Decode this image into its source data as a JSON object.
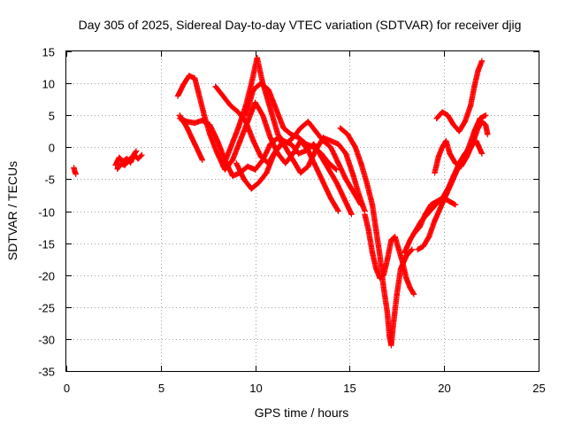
{
  "chart_data": {
    "type": "scatter",
    "title": "Day 305 of 2025, Sidereal Day-to-day VTEC variation (SDTVAR) for receiver djig",
    "xlabel": "GPS time / hours",
    "ylabel": "SDTVAR / TECUs",
    "xlim": [
      0,
      25
    ],
    "ylim": [
      -35,
      15
    ],
    "x_ticks": [
      0,
      5,
      10,
      15,
      20,
      25
    ],
    "y_ticks": [
      15,
      10,
      5,
      0,
      -5,
      -10,
      -15,
      -20,
      -25,
      -30,
      -35
    ],
    "grid": true,
    "marker": "+",
    "color": "#ff0000",
    "tracks": [
      [
        [
          0.4,
          -3.2
        ],
        [
          0.45,
          -3.8
        ],
        [
          0.5,
          -4.2
        ]
      ],
      [
        [
          2.6,
          -2.8
        ],
        [
          2.8,
          -1.6
        ],
        [
          3.0,
          -2.2
        ],
        [
          3.2,
          -1.8
        ],
        [
          3.4,
          -2.4
        ],
        [
          3.6,
          -1.2
        ],
        [
          3.8,
          -1.8
        ],
        [
          4.0,
          -1.2
        ]
      ],
      [
        [
          2.7,
          -3.4
        ],
        [
          2.9,
          -2.6
        ],
        [
          3.1,
          -2.8
        ],
        [
          3.3,
          -2.0
        ],
        [
          3.5,
          -1.5
        ],
        [
          3.7,
          -0.6
        ]
      ],
      [
        [
          5.9,
          8.0
        ],
        [
          6.2,
          9.8
        ],
        [
          6.5,
          11.2
        ],
        [
          6.8,
          10.8
        ],
        [
          7.0,
          8.5
        ],
        [
          7.3,
          5.0
        ],
        [
          7.6,
          2.0
        ],
        [
          8.0,
          -1.0
        ],
        [
          8.4,
          -3.5
        ],
        [
          8.8,
          -2.0
        ],
        [
          9.2,
          1.0
        ],
        [
          9.6,
          4.0
        ],
        [
          10.0,
          7.0
        ],
        [
          10.4,
          5.0
        ],
        [
          10.8,
          1.5
        ],
        [
          11.2,
          -1.0
        ],
        [
          11.6,
          -2.5
        ],
        [
          12.0,
          -1.0
        ],
        [
          12.4,
          1.0
        ],
        [
          12.8,
          -0.5
        ],
        [
          13.2,
          -3.0
        ],
        [
          13.6,
          -5.5
        ],
        [
          14.0,
          -8.0
        ],
        [
          14.4,
          -10.0
        ]
      ],
      [
        [
          6.0,
          5.0
        ],
        [
          6.4,
          3.0
        ],
        [
          6.8,
          0.5
        ],
        [
          7.2,
          -2.0
        ]
      ],
      [
        [
          6.0,
          4.5
        ],
        [
          6.4,
          4.0
        ],
        [
          6.8,
          3.8
        ],
        [
          7.2,
          4.2
        ],
        [
          7.6,
          3.5
        ],
        [
          8.0,
          1.0
        ],
        [
          8.4,
          -2.0
        ],
        [
          8.8,
          -4.5
        ],
        [
          9.2,
          -4.0
        ],
        [
          9.6,
          -3.0
        ],
        [
          10.0,
          -3.5
        ],
        [
          10.4,
          -2.0
        ],
        [
          10.8,
          0.5
        ],
        [
          11.2,
          1.5
        ],
        [
          11.6,
          0.0
        ],
        [
          12.0,
          -2.0
        ],
        [
          12.4,
          -4.0
        ],
        [
          12.8,
          -3.0
        ],
        [
          13.2,
          -0.5
        ],
        [
          13.6,
          1.5
        ],
        [
          14.0,
          1.0
        ],
        [
          14.4,
          0.5
        ],
        [
          14.8,
          -1.0
        ],
        [
          15.2,
          -4.5
        ],
        [
          15.5,
          -7.5
        ],
        [
          15.8,
          -10.0
        ]
      ],
      [
        [
          7.9,
          9.5
        ],
        [
          8.3,
          8.0
        ],
        [
          8.7,
          6.5
        ],
        [
          9.1,
          5.5
        ],
        [
          9.5,
          4.0
        ],
        [
          9.9,
          1.0
        ],
        [
          10.3,
          -1.5
        ],
        [
          10.7,
          -2.5
        ],
        [
          11.1,
          -0.5
        ],
        [
          11.5,
          1.0
        ],
        [
          11.9,
          0.5
        ],
        [
          12.3,
          -1.0
        ],
        [
          12.7,
          -0.5
        ],
        [
          13.1,
          0.5
        ],
        [
          13.5,
          -1.5
        ],
        [
          13.9,
          -3.5
        ],
        [
          14.3,
          -5.5
        ],
        [
          14.7,
          -8.0
        ],
        [
          15.1,
          -10.5
        ]
      ],
      [
        [
          8.3,
          -3.0
        ],
        [
          8.7,
          0.0
        ],
        [
          9.1,
          3.0
        ],
        [
          9.5,
          6.5
        ],
        [
          9.8,
          10.0
        ],
        [
          10.1,
          14.0
        ],
        [
          10.4,
          10.0
        ],
        [
          10.8,
          6.0
        ],
        [
          11.2,
          2.0
        ],
        [
          11.6,
          0.5
        ],
        [
          12.0,
          1.5
        ],
        [
          12.4,
          3.0
        ],
        [
          12.8,
          4.0
        ],
        [
          13.2,
          2.5
        ],
        [
          13.6,
          1.0
        ],
        [
          14.0,
          0.0
        ],
        [
          14.4,
          -2.5
        ],
        [
          14.8,
          -5.0
        ],
        [
          15.2,
          -7.0
        ],
        [
          15.6,
          -9.0
        ]
      ],
      [
        [
          9.0,
          -2.5
        ],
        [
          9.4,
          -5.0
        ],
        [
          9.8,
          -6.5
        ],
        [
          10.2,
          -5.5
        ],
        [
          10.6,
          -4.0
        ],
        [
          11.0,
          -1.0
        ],
        [
          11.4,
          0.5
        ]
      ],
      [
        [
          9.5,
          5.0
        ],
        [
          9.9,
          9.0
        ],
        [
          10.3,
          10.0
        ],
        [
          10.7,
          9.0
        ],
        [
          11.1,
          6.0
        ],
        [
          11.5,
          3.0
        ],
        [
          11.9,
          2.0
        ],
        [
          12.3,
          1.5
        ],
        [
          12.7,
          0.5
        ],
        [
          13.1,
          0.0
        ],
        [
          13.5,
          -1.0
        ],
        [
          13.9,
          -2.5
        ],
        [
          14.3,
          -3.5
        ]
      ],
      [
        [
          14.5,
          3.0
        ],
        [
          14.9,
          2.0
        ],
        [
          15.3,
          0.0
        ],
        [
          15.6,
          -2.5
        ],
        [
          15.9,
          -5.5
        ],
        [
          16.2,
          -9.0
        ],
        [
          16.4,
          -13.0
        ],
        [
          16.6,
          -17.0
        ],
        [
          16.8,
          -22.0
        ],
        [
          17.0,
          -26.0
        ],
        [
          17.1,
          -29.5
        ],
        [
          17.2,
          -31.0
        ],
        [
          17.3,
          -28.0
        ],
        [
          17.5,
          -23.0
        ],
        [
          17.7,
          -19.0
        ],
        [
          18.0,
          -17.0
        ],
        [
          18.3,
          -16.0
        ]
      ],
      [
        [
          15.8,
          -10.5
        ],
        [
          16.0,
          -13.0
        ],
        [
          16.2,
          -16.5
        ],
        [
          16.4,
          -19.0
        ],
        [
          16.6,
          -20.5
        ],
        [
          16.8,
          -20.0
        ],
        [
          17.0,
          -17.5
        ],
        [
          17.2,
          -14.5
        ],
        [
          17.4,
          -14.0
        ],
        [
          17.6,
          -16.0
        ],
        [
          17.8,
          -18.0
        ],
        [
          18.0,
          -20.5
        ],
        [
          18.2,
          -22.0
        ],
        [
          18.4,
          -23.0
        ]
      ],
      [
        [
          17.9,
          -16.5
        ],
        [
          18.2,
          -14.5
        ],
        [
          18.5,
          -13.0
        ],
        [
          18.8,
          -11.5
        ],
        [
          19.1,
          -10.5
        ],
        [
          19.4,
          -9.5
        ],
        [
          19.7,
          -8.5
        ],
        [
          20.0,
          -8.0
        ],
        [
          20.3,
          -8.5
        ],
        [
          20.6,
          -9.0
        ]
      ],
      [
        [
          18.4,
          -13.5
        ],
        [
          18.7,
          -12.5
        ],
        [
          19.0,
          -10.5
        ],
        [
          19.3,
          -9.0
        ],
        [
          19.6,
          -8.5
        ],
        [
          19.9,
          -8.0
        ],
        [
          20.2,
          -6.5
        ],
        [
          20.5,
          -4.5
        ],
        [
          20.8,
          -2.5
        ],
        [
          21.1,
          -1.0
        ],
        [
          21.4,
          0.0
        ],
        [
          21.7,
          1.0
        ],
        [
          22.0,
          -1.0
        ]
      ],
      [
        [
          18.6,
          -16.0
        ],
        [
          18.9,
          -15.5
        ],
        [
          19.2,
          -14.0
        ],
        [
          19.5,
          -11.5
        ],
        [
          19.8,
          -9.5
        ],
        [
          20.1,
          -7.5
        ],
        [
          20.4,
          -5.5
        ],
        [
          20.7,
          -3.5
        ],
        [
          21.0,
          -2.0
        ],
        [
          21.3,
          0.0
        ],
        [
          21.6,
          2.5
        ],
        [
          21.9,
          4.5
        ],
        [
          22.2,
          5.0
        ]
      ],
      [
        [
          19.5,
          -4.0
        ],
        [
          19.7,
          -1.5
        ],
        [
          19.9,
          0.0
        ],
        [
          20.1,
          1.0
        ],
        [
          20.3,
          -1.0
        ],
        [
          20.6,
          -2.5
        ],
        [
          20.9,
          -3.0
        ],
        [
          21.2,
          -1.5
        ],
        [
          21.5,
          0.5
        ],
        [
          21.8,
          3.0
        ],
        [
          22.0,
          4.0
        ],
        [
          22.2,
          3.5
        ],
        [
          22.3,
          2.0
        ]
      ],
      [
        [
          19.6,
          4.5
        ],
        [
          19.9,
          5.5
        ],
        [
          20.2,
          5.0
        ],
        [
          20.5,
          3.5
        ],
        [
          20.8,
          2.5
        ],
        [
          21.1,
          4.0
        ],
        [
          21.4,
          6.5
        ],
        [
          21.6,
          9.5
        ],
        [
          21.8,
          12.0
        ],
        [
          22.0,
          13.5
        ]
      ]
    ]
  }
}
